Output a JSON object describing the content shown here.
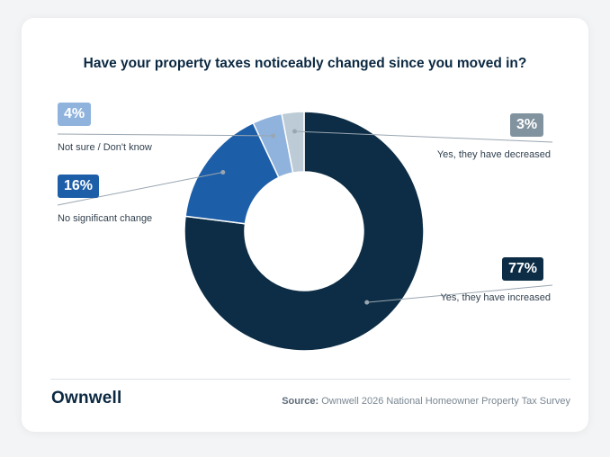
{
  "source": {
    "label": "Source:",
    "text": "Ownwell 2026 National Homeowner Property Tax Survey"
  },
  "brand": {
    "logo_text": "Ownwell"
  },
  "chart_data": {
    "type": "pie",
    "title": "Have your property taxes noticeably changed since you moved in?",
    "donut": true,
    "slices": [
      {
        "label": "Yes, they have increased",
        "value": 77,
        "value_label": "77%",
        "color": "#0c2d45"
      },
      {
        "label": "No significant change",
        "value": 16,
        "value_label": "16%",
        "color": "#1d5ea8"
      },
      {
        "label": "Not sure / Don't know",
        "value": 4,
        "value_label": "4%",
        "color": "#8fb3dd"
      },
      {
        "label": "Yes, they have decreased",
        "value": 3,
        "value_label": "3%",
        "color": "#bccbd6"
      }
    ],
    "badge_colors": [
      "#0c2d45",
      "#1d5ea8",
      "#8fb3dd",
      "#8293a0"
    ]
  }
}
